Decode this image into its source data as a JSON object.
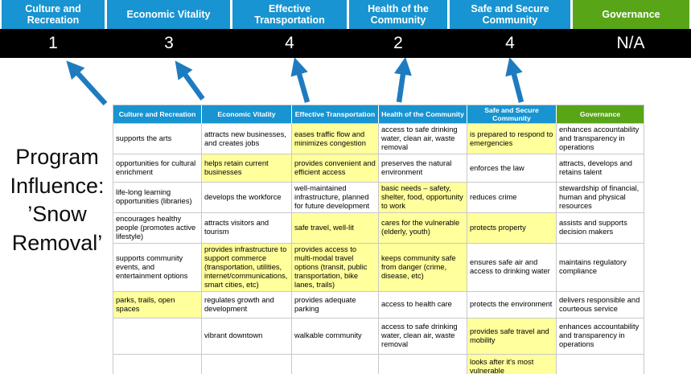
{
  "program_label": "Program Influence: ’Snow Removal’",
  "banner": {
    "categories": [
      {
        "label": "Culture and Recreation",
        "score": "1",
        "style": "blue"
      },
      {
        "label": "Economic Vitality",
        "score": "3",
        "style": "blue"
      },
      {
        "label": "Effective Transportation",
        "score": "4",
        "style": "blue"
      },
      {
        "label": "Health of the Community",
        "score": "2",
        "style": "blue"
      },
      {
        "label": "Safe and Secure Community",
        "score": "4",
        "style": "blue"
      },
      {
        "label": "Governance",
        "score": "N/A",
        "style": "green"
      }
    ]
  },
  "matrix": {
    "headers": [
      {
        "label": "Culture and Recreation",
        "style": "blue"
      },
      {
        "label": "Economic Vitality",
        "style": "blue"
      },
      {
        "label": "Effective Transportation",
        "style": "blue"
      },
      {
        "label": "Health of the Community",
        "style": "blue"
      },
      {
        "label": "Safe and Secure Community",
        "style": "blue"
      },
      {
        "label": "Governance",
        "style": "green"
      }
    ],
    "rows": [
      [
        {
          "text": "supports the arts",
          "highlight": false
        },
        {
          "text": "attracts new businesses, and creates jobs",
          "highlight": false
        },
        {
          "text": "eases traffic flow and minimizes congestion",
          "highlight": true
        },
        {
          "text": "access to safe drinking water, clean air, waste removal",
          "highlight": false
        },
        {
          "text": "is prepared to respond to emergencies",
          "highlight": true
        },
        {
          "text": "enhances accountability and transparency in operations",
          "highlight": false
        }
      ],
      [
        {
          "text": "opportunities for cultural enrichment",
          "highlight": false
        },
        {
          "text": "helps retain current businesses",
          "highlight": true
        },
        {
          "text": "provides convenient and efficient access",
          "highlight": true
        },
        {
          "text": "preserves the natural environment",
          "highlight": false
        },
        {
          "text": "enforces the law",
          "highlight": false
        },
        {
          "text": "attracts, develops and retains talent",
          "highlight": false
        }
      ],
      [
        {
          "text": "life-long learning opportunities (libraries)",
          "highlight": false
        },
        {
          "text": "develops the workforce",
          "highlight": false
        },
        {
          "text": "well-maintained infrastructure, planned for future development",
          "highlight": false
        },
        {
          "text": "basic needs – safety, shelter, food, opportunity to work",
          "highlight": true
        },
        {
          "text": "reduces crime",
          "highlight": false
        },
        {
          "text": "stewardship of financial, human and physical resources",
          "highlight": false
        }
      ],
      [
        {
          "text": "encourages healthy people (promotes active lifestyle)",
          "highlight": false
        },
        {
          "text": "attracts visitors and tourism",
          "highlight": false
        },
        {
          "text": "safe travel, well-lit",
          "highlight": true
        },
        {
          "text": "cares for the vulnerable (elderly, youth)",
          "highlight": true
        },
        {
          "text": "protects property",
          "highlight": true
        },
        {
          "text": "assists and supports decision makers",
          "highlight": false
        }
      ],
      [
        {
          "text": "supports community events, and entertainment options",
          "highlight": false
        },
        {
          "text": "provides infrastructure to support commerce (transportation, utilities, internet/communications, smart cities, etc)",
          "highlight": true
        },
        {
          "text": "provides access to multi-modal travel options (transit, public transportation, bike lanes, trails)",
          "highlight": true
        },
        {
          "text": "keeps community safe from danger (crime, disease, etc)",
          "highlight": true
        },
        {
          "text": "ensures safe air and access to drinking water",
          "highlight": false
        },
        {
          "text": "maintains regulatory compliance",
          "highlight": false
        }
      ],
      [
        {
          "text": "parks, trails, open spaces",
          "highlight": true
        },
        {
          "text": "regulates growth and development",
          "highlight": false
        },
        {
          "text": "provides adequate parking",
          "highlight": false
        },
        {
          "text": "access to health care",
          "highlight": false
        },
        {
          "text": "protects the environment",
          "highlight": false
        },
        {
          "text": "delivers responsible and courteous service",
          "highlight": false
        }
      ],
      [
        {
          "text": "",
          "highlight": false
        },
        {
          "text": "vibrant downtown",
          "highlight": false
        },
        {
          "text": "walkable community",
          "highlight": false
        },
        {
          "text": "access to safe drinking water, clean air, waste removal",
          "highlight": false
        },
        {
          "text": "provides safe travel and mobility",
          "highlight": true
        },
        {
          "text": "enhances accountability and transparency in operations",
          "highlight": false
        }
      ],
      [
        {
          "text": "",
          "highlight": false
        },
        {
          "text": "",
          "highlight": false
        },
        {
          "text": "",
          "highlight": false
        },
        {
          "text": "",
          "highlight": false
        },
        {
          "text": "looks after it's most vulnerable",
          "highlight": true
        },
        {
          "text": "",
          "highlight": false
        }
      ]
    ]
  },
  "colors": {
    "header_blue": "#1794d1",
    "header_green": "#58a618",
    "highlight_yellow": "#ffff9c",
    "arrow_blue": "#1e7bc0",
    "score_bar_black": "#000000"
  }
}
